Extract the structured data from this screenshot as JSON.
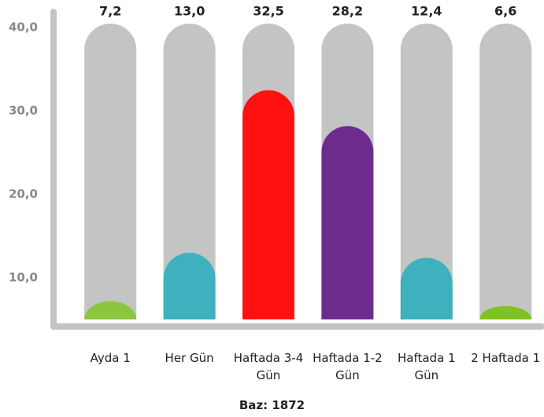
{
  "chart_data": {
    "type": "bar",
    "categories": [
      "Ayda 1",
      "Her Gün",
      "Haftada 3-4 Gün",
      "Haftada 1-2 Gün",
      "Haftada 1 Gün",
      "2 Haftada 1"
    ],
    "values": [
      7.2,
      13.0,
      32.5,
      28.2,
      12.4,
      6.6
    ],
    "value_labels": [
      "7,2",
      "13,0",
      "32,5",
      "28,2",
      "12,4",
      "6,6"
    ],
    "colors": [
      "#8cc63f",
      "#3fb0bd",
      "#ff1111",
      "#6d2b8d",
      "#3fb0bd",
      "#7ec31f"
    ],
    "ylim": [
      5,
      42
    ],
    "yticks": [
      {
        "value": 10,
        "label": "10,0"
      },
      {
        "value": 20,
        "label": "20,0"
      },
      {
        "value": 30,
        "label": "30,0"
      },
      {
        "value": 40,
        "label": "40,0"
      }
    ],
    "note": "Baz: 1872"
  }
}
